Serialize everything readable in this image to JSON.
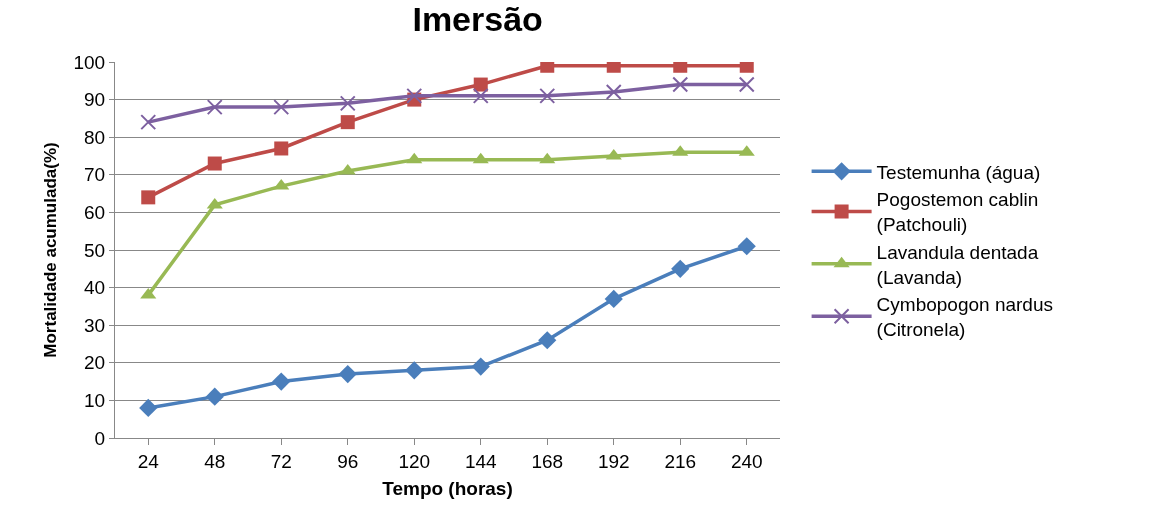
{
  "chart_data": {
    "type": "line",
    "title": "Imersão",
    "xlabel": "Tempo (horas)",
    "ylabel": "Mortalidade acumulada(%)",
    "categories": [
      "24",
      "48",
      "72",
      "96",
      "120",
      "144",
      "168",
      "192",
      "216",
      "240"
    ],
    "series": [
      {
        "name": "Testemunha (água)",
        "color": "#4a7ebb",
        "marker": "diamond",
        "values": [
          8,
          11,
          15,
          17,
          18,
          19,
          26,
          37,
          45,
          51
        ]
      },
      {
        "name": "Pogostemon cablin (Patchouli)",
        "color": "#be4b48",
        "marker": "square",
        "values": [
          64,
          73,
          77,
          84,
          90,
          94,
          99,
          99,
          99,
          99
        ]
      },
      {
        "name": "Lavandula dentada (Lavanda)",
        "color": "#98b954",
        "marker": "triangle",
        "values": [
          38,
          62,
          67,
          71,
          74,
          74,
          74,
          75,
          76,
          76
        ]
      },
      {
        "name": "Cymbopogon nardus (Citronela)",
        "color": "#7d60a0",
        "marker": "cross",
        "values": [
          84,
          88,
          88,
          89,
          91,
          91,
          91,
          92,
          94,
          94
        ]
      }
    ],
    "ylim": [
      0,
      100
    ],
    "yticks": [
      0,
      10,
      20,
      30,
      40,
      50,
      60,
      70,
      80,
      90,
      100
    ],
    "grid": "y",
    "legend": "right"
  }
}
